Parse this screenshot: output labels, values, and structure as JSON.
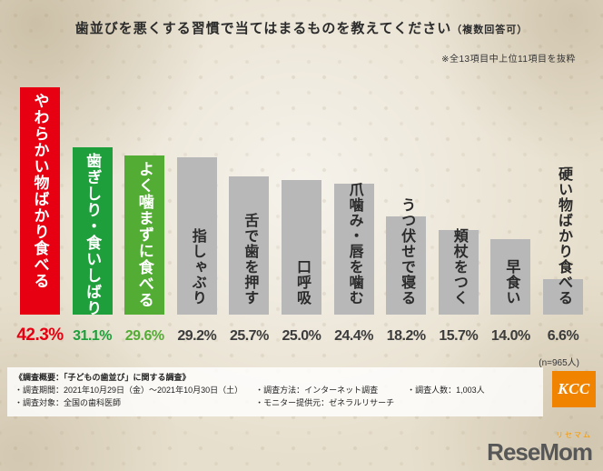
{
  "header": {
    "title": "歯並びを悪くする習慣で当てはまるものを教えてください",
    "title_suffix": "（複数回答可）",
    "note": "※全13項目中上位11項目を抜粋"
  },
  "chart_data": {
    "type": "bar",
    "title": "歯並びを悪くする習慣で当てはまるものを教えてください（複数回答可）",
    "categories": [
      "やわらかい物ばかり食べる",
      "歯ぎしり・食いしばり",
      "よく噛まずに食べる",
      "指しゃぶり",
      "舌で歯を押す",
      "口呼吸",
      "爪噛み・唇を噛む",
      "うつ伏せで寝る",
      "頬杖をつく",
      "早食い",
      "硬い物ばかり食べる"
    ],
    "values": [
      42.3,
      31.1,
      29.6,
      29.2,
      25.7,
      25.0,
      24.4,
      18.2,
      15.7,
      14.0,
      6.6
    ],
    "value_labels": [
      "42.3%",
      "31.1%",
      "29.6%",
      "29.2%",
      "25.7%",
      "25.0%",
      "24.4%",
      "18.2%",
      "15.7%",
      "14.0%",
      "6.6%"
    ],
    "bar_colors": [
      "#e60012",
      "#1f9e3c",
      "#53ad35",
      "#b8b8b8",
      "#b8b8b8",
      "#b8b8b8",
      "#b8b8b8",
      "#b8b8b8",
      "#b8b8b8",
      "#b8b8b8",
      "#b8b8b8"
    ],
    "value_colors": [
      "#e60012",
      "#1f9e3c",
      "#53ad35",
      "#3c3c3c",
      "#3c3c3c",
      "#3c3c3c",
      "#3c3c3c",
      "#3c3c3c",
      "#3c3c3c",
      "#3c3c3c",
      "#3c3c3c"
    ],
    "label_inside": [
      true,
      true,
      true,
      false,
      false,
      false,
      false,
      false,
      false,
      false,
      false
    ],
    "ylim": [
      0,
      44
    ],
    "legend": "none",
    "grid": false,
    "sample_note": "(n=965人)"
  },
  "survey": {
    "heading": "《調査概要：「子どもの歯並び」に関する調査》",
    "columns": [
      [
        "・調査期間：2021年10月29日（金）～2021年10月30日（土）",
        "・調査対象：全国の歯科医師"
      ],
      [
        "・調査方法：インターネット調査",
        "・モニター提供元：ゼネラルリサーチ"
      ],
      [
        "・調査人数：1,003人"
      ]
    ]
  },
  "logos": {
    "kcc": "KCC",
    "resemom": "ReseMom",
    "resemom_kana": "リセマム"
  }
}
